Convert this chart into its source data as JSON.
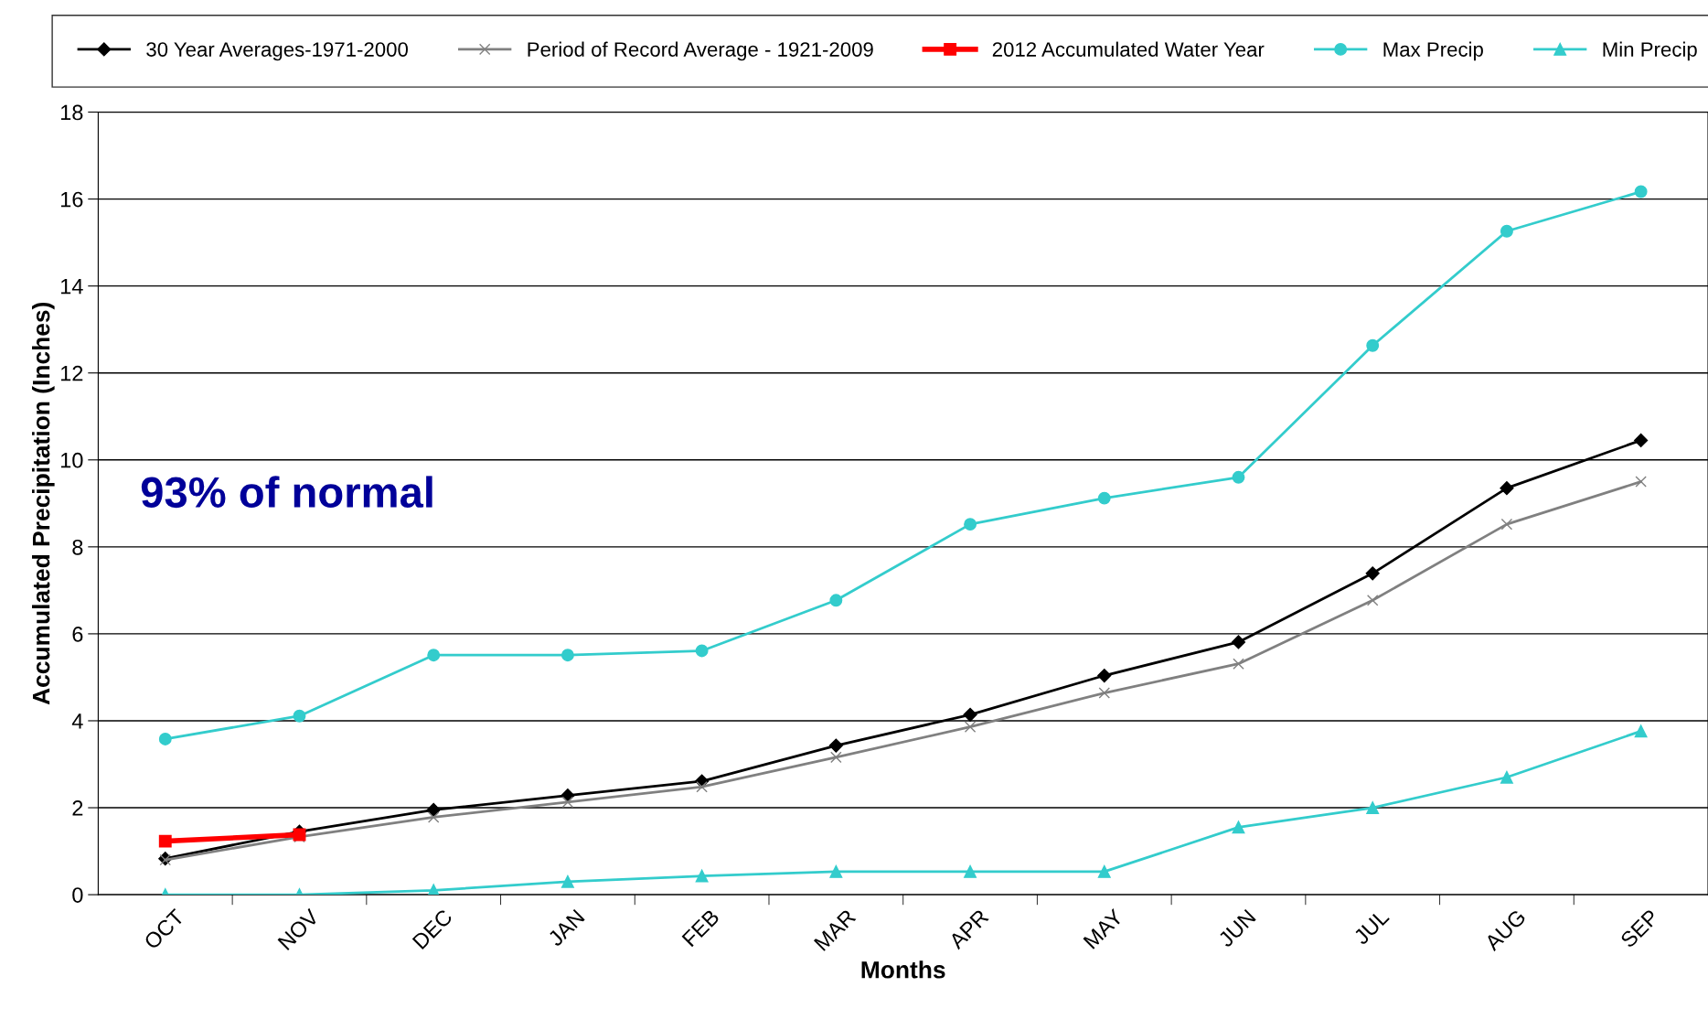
{
  "chart_data": {
    "type": "line",
    "xlabel": "Months",
    "ylabel": "Accumulated Precipitation (Inches)",
    "categories": [
      "OCT",
      "NOV",
      "DEC",
      "JAN",
      "FEB",
      "MAR",
      "APR",
      "MAY",
      "JUN",
      "JUL",
      "AUG",
      "SEP"
    ],
    "series": [
      {
        "name": "30 Year Averages-1971-2000",
        "color": "#000000",
        "marker": "diamond",
        "values": [
          0.83,
          1.45,
          1.95,
          2.28,
          2.61,
          3.43,
          4.14,
          5.04,
          5.81,
          7.39,
          9.35,
          10.45
        ]
      },
      {
        "name": "Period of Record Average - 1921-2009",
        "color": "#808080",
        "marker": "cross",
        "values": [
          0.8,
          1.33,
          1.78,
          2.13,
          2.48,
          3.16,
          3.86,
          4.64,
          5.31,
          6.77,
          8.52,
          9.5
        ]
      },
      {
        "name": "2012 Accumulated Water Year",
        "color": "#ff0000",
        "marker": "square",
        "values": [
          1.23,
          1.38,
          null,
          null,
          null,
          null,
          null,
          null,
          null,
          null,
          null,
          null
        ]
      },
      {
        "name": "Max Precip",
        "color": "#33cccc",
        "marker": "circle",
        "values": [
          3.58,
          4.11,
          5.51,
          5.51,
          5.61,
          6.77,
          8.52,
          9.12,
          9.6,
          12.63,
          15.26,
          16.17
        ]
      },
      {
        "name": "Min Precip",
        "color": "#33cccc",
        "marker": "triangle",
        "values": [
          0,
          0,
          0.1,
          0.3,
          0.43,
          0.53,
          0.53,
          0.53,
          1.55,
          2.0,
          2.7,
          3.76
        ]
      }
    ],
    "ylim": [
      0,
      18
    ],
    "yticks": [
      0,
      2,
      4,
      6,
      8,
      10,
      12,
      14,
      16,
      18
    ],
    "grid": "y",
    "legend": "top",
    "annotations": [
      "93% of normal"
    ]
  }
}
